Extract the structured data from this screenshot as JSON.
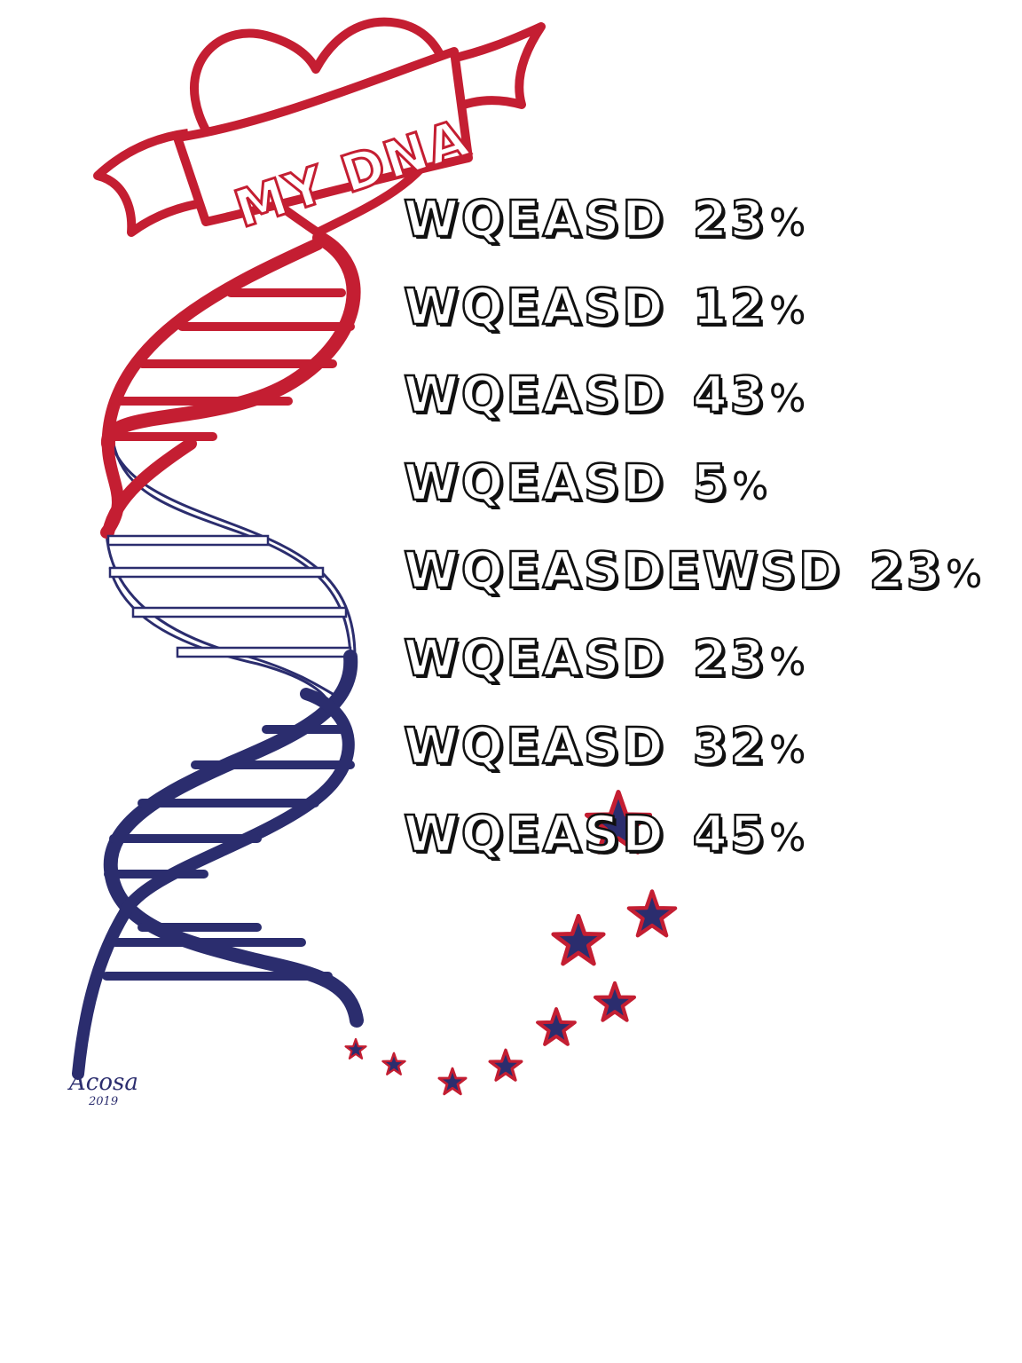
{
  "title": "MY DNA",
  "items": [
    {
      "label": "WQEASD",
      "value": "23",
      "unit": "%"
    },
    {
      "label": "WQEASD",
      "value": "12",
      "unit": "%"
    },
    {
      "label": "WQEASD",
      "value": "43",
      "unit": "%"
    },
    {
      "label": "WQEASD",
      "value": "5",
      "unit": "%"
    },
    {
      "label": "WQEASDEWSD",
      "value": "23",
      "unit": "%"
    },
    {
      "label": "WQEASD",
      "value": "23",
      "unit": "%"
    },
    {
      "label": "WQEASD",
      "value": "32",
      "unit": "%"
    },
    {
      "label": "WQEASD",
      "value": "45",
      "unit": "%"
    }
  ],
  "signature": {
    "name": "Acosa",
    "year": "2019"
  },
  "colors": {
    "red": "#c41e32",
    "navy": "#2b2d6e",
    "text": "#111111",
    "background": "#ffffff"
  },
  "icons": [
    "heart-icon",
    "banner-ribbon",
    "dna-helix",
    "star-icon"
  ]
}
